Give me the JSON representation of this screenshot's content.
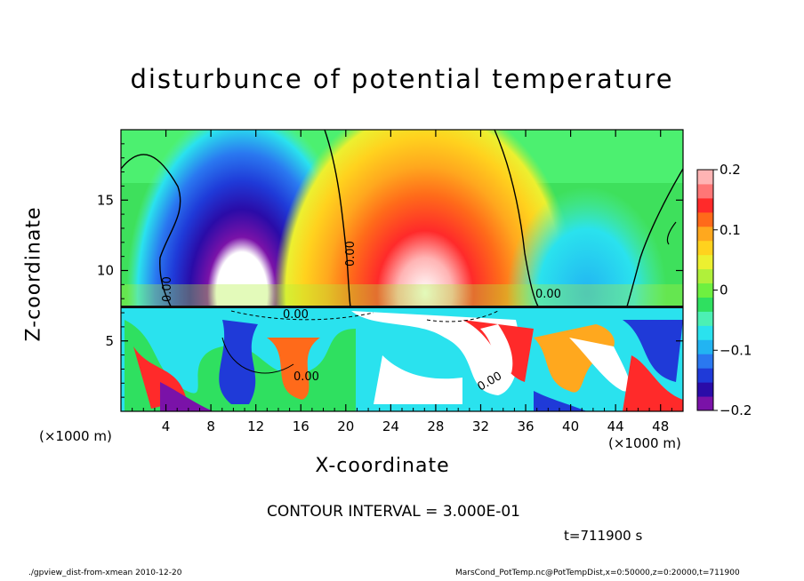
{
  "chart_data": {
    "type": "heatmap",
    "title": "disturbunce of potential temperature",
    "xlabel": "X-coordinate",
    "ylabel": "Z-coordinate",
    "x_unit": "(×1000 m)",
    "y_unit": "(×1000 m)",
    "xlim": [
      0,
      50
    ],
    "ylim": [
      0,
      20
    ],
    "x_ticks": [
      4,
      8,
      12,
      16,
      20,
      24,
      28,
      32,
      36,
      40,
      44,
      48
    ],
    "y_ticks": [
      5,
      10,
      15
    ],
    "colorbar": {
      "range": [
        -0.2,
        0.2
      ],
      "tick_values": [
        0.2,
        0.1,
        0,
        -0.1,
        -0.2
      ],
      "tick_labels": [
        "0.2",
        "0.1",
        "0",
        "−0.1",
        "−0.2"
      ],
      "colors": [
        "#7a12a8",
        "#2a0ca8",
        "#1f3ad8",
        "#2a78f0",
        "#22b4f2",
        "#2ae2ee",
        "#4cf0b4",
        "#2fe060",
        "#6ef040",
        "#b0f03a",
        "#ecf030",
        "#ffd21e",
        "#ffa81e",
        "#ff6a1a",
        "#ff2a2a",
        "#ff7676",
        "#ffb4b4"
      ]
    },
    "contour_labels": [
      "0.00",
      "0.00",
      "0.00",
      "0.00",
      "0.00",
      "0.00"
    ],
    "features": [
      {
        "name": "cold anomaly",
        "x_center": 11,
        "z_center": 11.5,
        "value_min": -0.2
      },
      {
        "name": "warm anomaly",
        "x_center": 28.5,
        "z_center": 11.5,
        "value_max": 0.2
      }
    ],
    "boundary_layer_top_z": 7.5
  },
  "contour_interval_text": "CONTOUR INTERVAL = 3.000E-01",
  "time_text": "t=711900 s",
  "footer": {
    "left": "./gpview_dist-from-xmean  2010-12-20",
    "right": "MarsCond_PotTemp.nc@PotTempDist,x=0:50000,z=0:20000,t=711900"
  }
}
